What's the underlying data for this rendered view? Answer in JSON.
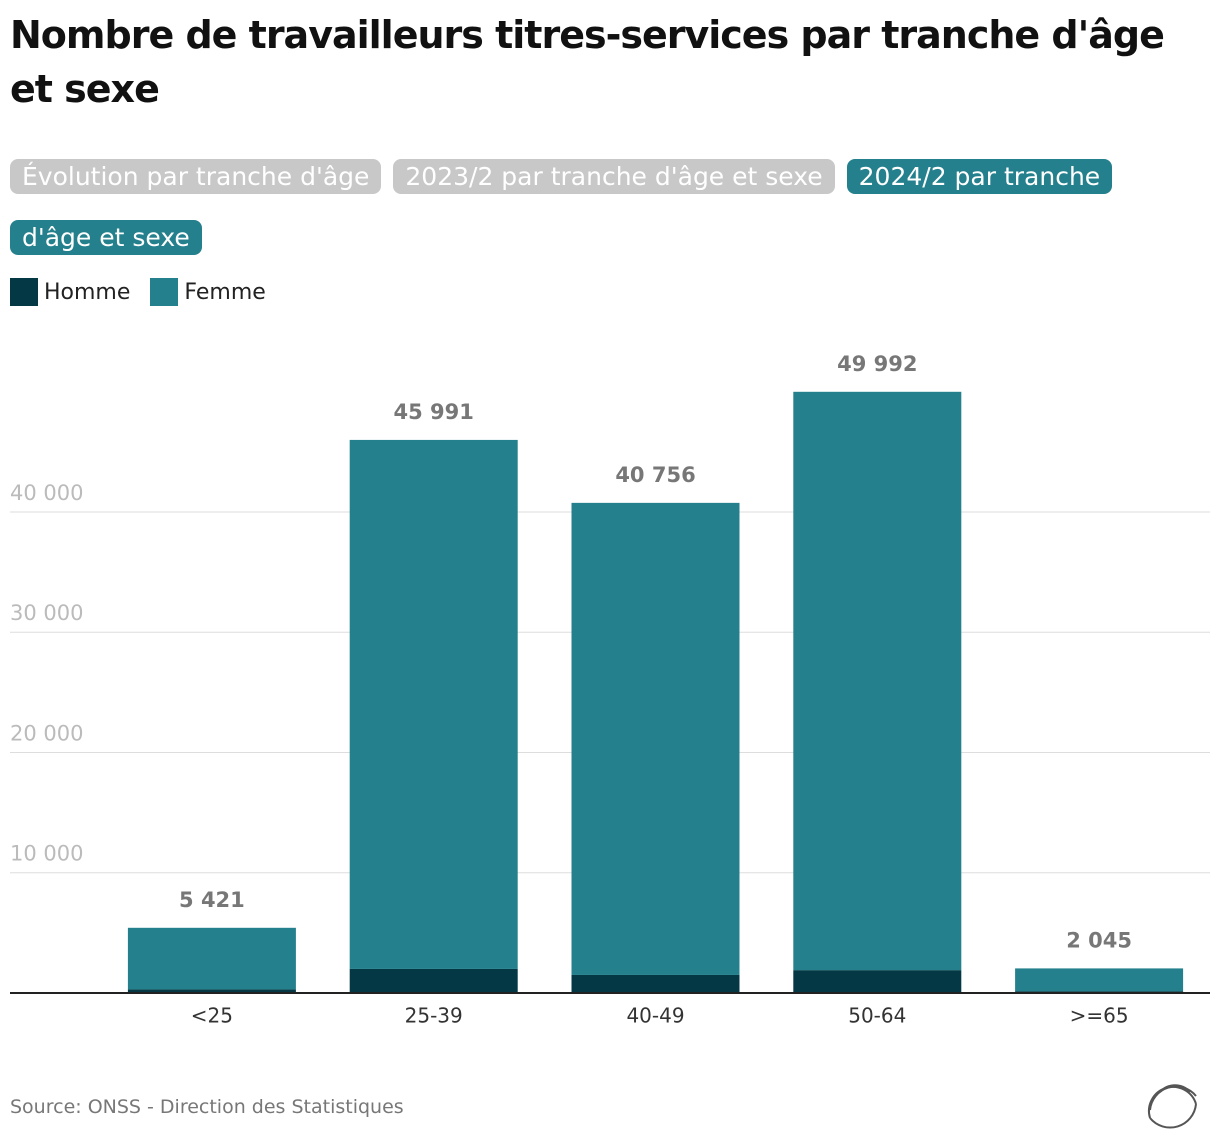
{
  "title": "Nombre de travailleurs titres-services par tranche d'âge et sexe",
  "tabs": [
    "Évolution par tranche d'âge",
    "2023/2 par tranche d'âge et sexe",
    "2024/2 par tranche d'âge et sexe"
  ],
  "active_tab": 2,
  "source": "Source: ONSS - Direction des Statistiques",
  "chart_data": {
    "type": "stacked-bar",
    "categories": [
      "<25",
      "25-39",
      "40-49",
      "50-64",
      ">=65"
    ],
    "series": [
      {
        "name": "Homme",
        "color": "#033844",
        "values": [
          300,
          2000,
          1500,
          1900,
          150
        ]
      },
      {
        "name": "Femme",
        "color": "#24808d",
        "values": [
          5121,
          43991,
          39256,
          48092,
          1895
        ]
      }
    ],
    "totals": [
      5421,
      45991,
      40756,
      49992,
      2045
    ],
    "total_labels": [
      "5 421",
      "45 991",
      "40 756",
      "49 992",
      "2 045"
    ],
    "ylim": [
      0,
      54000
    ],
    "yticks": [
      {
        "value": 10000,
        "label": "10 000"
      },
      {
        "value": 20000,
        "label": "20 000"
      },
      {
        "value": 30000,
        "label": "30 000"
      },
      {
        "value": 40000,
        "label": "40 000"
      }
    ],
    "grid": true
  }
}
